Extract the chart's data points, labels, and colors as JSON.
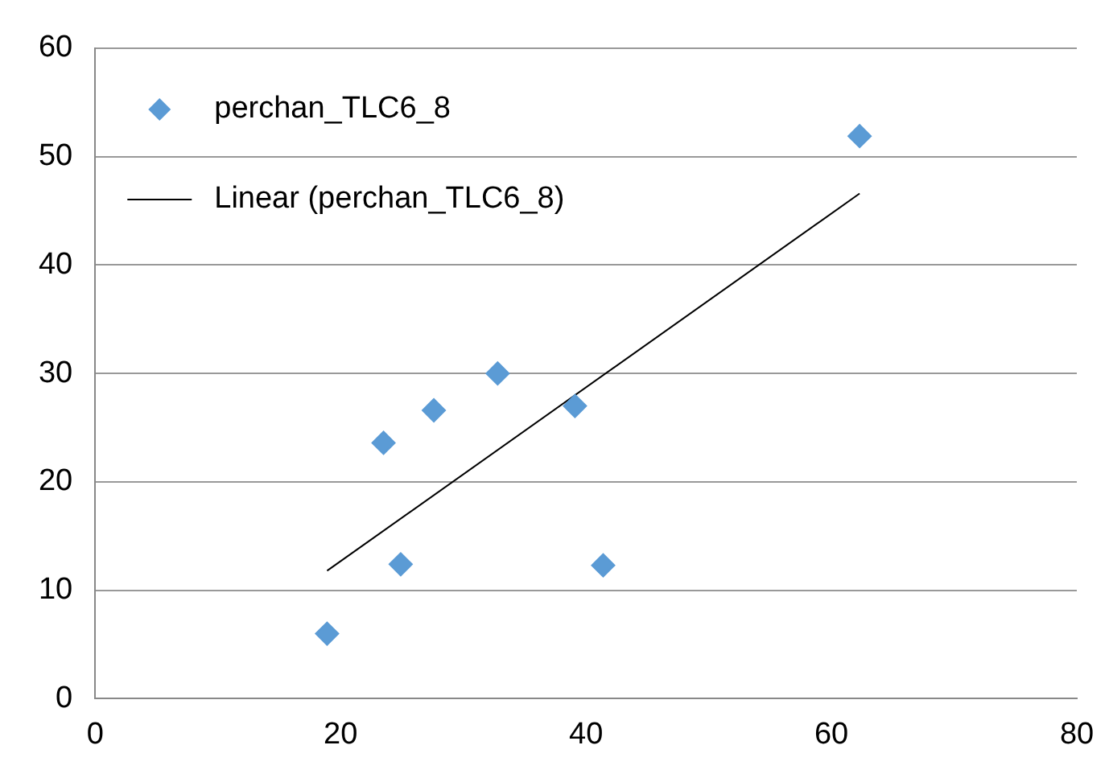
{
  "chart_data": {
    "type": "scatter",
    "marker": "diamond",
    "grid": "y",
    "legend": "top left",
    "xlim": [
      0,
      80
    ],
    "xticks": [
      0,
      20,
      40,
      60,
      80
    ],
    "ylim": [
      0,
      60
    ],
    "yticks": [
      0,
      10,
      20,
      30,
      40,
      50,
      60
    ],
    "series": [
      {
        "name": "perchan_TLC6_8",
        "color": "#5b9bd5",
        "x": [
          18.9,
          23.5,
          24.9,
          27.6,
          32.8,
          39.1,
          41.4,
          62.3
        ],
        "values": [
          6.0,
          23.6,
          12.4,
          26.6,
          30.0,
          27.0,
          12.3,
          51.9
        ]
      },
      {
        "name": "Linear (perchan_TLC6_8)",
        "type": "line",
        "marker": "none",
        "color": "#000000",
        "x": [
          18.9,
          62.3
        ],
        "values": [
          11.8,
          46.6
        ]
      }
    ]
  }
}
